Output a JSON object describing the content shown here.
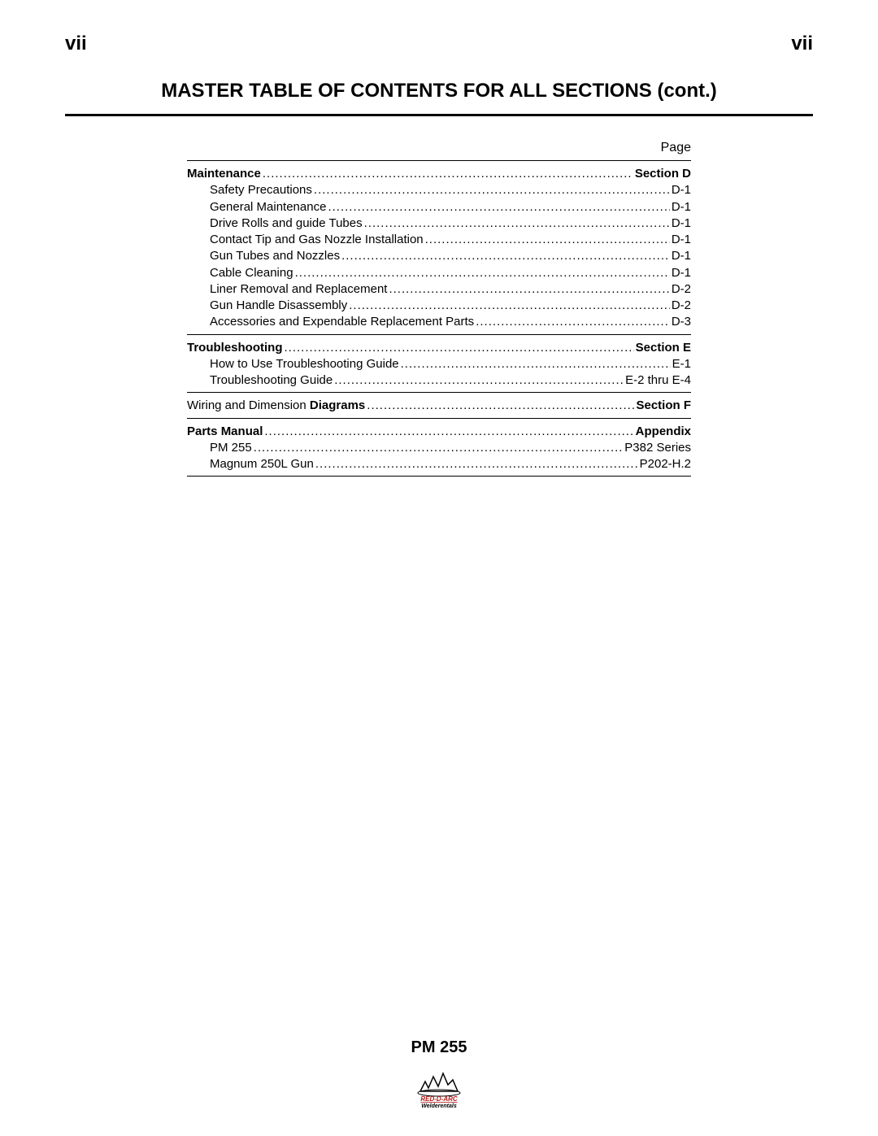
{
  "page": {
    "number_left": "vii",
    "number_right": "vii",
    "title": "MASTER TABLE OF CONTENTS FOR ALL SECTIONS (cont.)",
    "page_label": "Page",
    "footer_title": "PM 255",
    "logo_text_top": "RED-D-ARC",
    "logo_text_bottom": "Welderentals",
    "colors": {
      "text": "#000000",
      "background": "#ffffff",
      "rule": "#000000",
      "logo_red": "#b31b1b"
    }
  },
  "sections": [
    {
      "heading": {
        "label": "Maintenance",
        "ref": "Section D",
        "bold": true,
        "indent": 0
      },
      "items": [
        {
          "label": "Safety Precautions",
          "ref": "D-1",
          "indent": 1
        },
        {
          "label": "General Maintenance",
          "ref": "D-1",
          "indent": 1
        },
        {
          "label": "Drive Rolls and guide Tubes",
          "ref": "D-1",
          "indent": 1
        },
        {
          "label": "Contact Tip and Gas Nozzle Installation",
          "ref": "D-1",
          "indent": 1
        },
        {
          "label": "Gun Tubes and Nozzles",
          "ref": "D-1",
          "indent": 1
        },
        {
          "label": "Cable Cleaning",
          "ref": "D-1",
          "indent": 1
        },
        {
          "label": "Liner Removal and Replacement",
          "ref": "D-2",
          "indent": 1
        },
        {
          "label": "Gun Handle Disassembly",
          "ref": "D-2",
          "indent": 1
        },
        {
          "label": "Accessories and Expendable Replacement  Parts",
          "ref": "D-3",
          "indent": 1
        }
      ]
    },
    {
      "heading": {
        "label": "Troubleshooting",
        "ref": "Section E",
        "bold": true,
        "indent": 0
      },
      "items": [
        {
          "label": "How to Use Troubleshooting Guide",
          "ref": "E-1",
          "indent": 1
        },
        {
          "label": "Troubleshooting Guide",
          "ref": "E-2 thru E-4",
          "indent": 1
        }
      ]
    },
    {
      "heading": {
        "label_plain": "Wiring and Dimension ",
        "label_bold": "Diagrams",
        "ref": "Section F",
        "bold": "partial",
        "indent": 0
      },
      "items": []
    },
    {
      "heading": {
        "label": "Parts Manual",
        "ref": "Appendix",
        "bold": true,
        "indent": 0
      },
      "items": [
        {
          "label": "PM 255",
          "ref": "P382 Series",
          "indent": 1
        },
        {
          "label": "Magnum 250L Gun",
          "ref": "P202-H.2",
          "indent": 1
        }
      ]
    }
  ]
}
